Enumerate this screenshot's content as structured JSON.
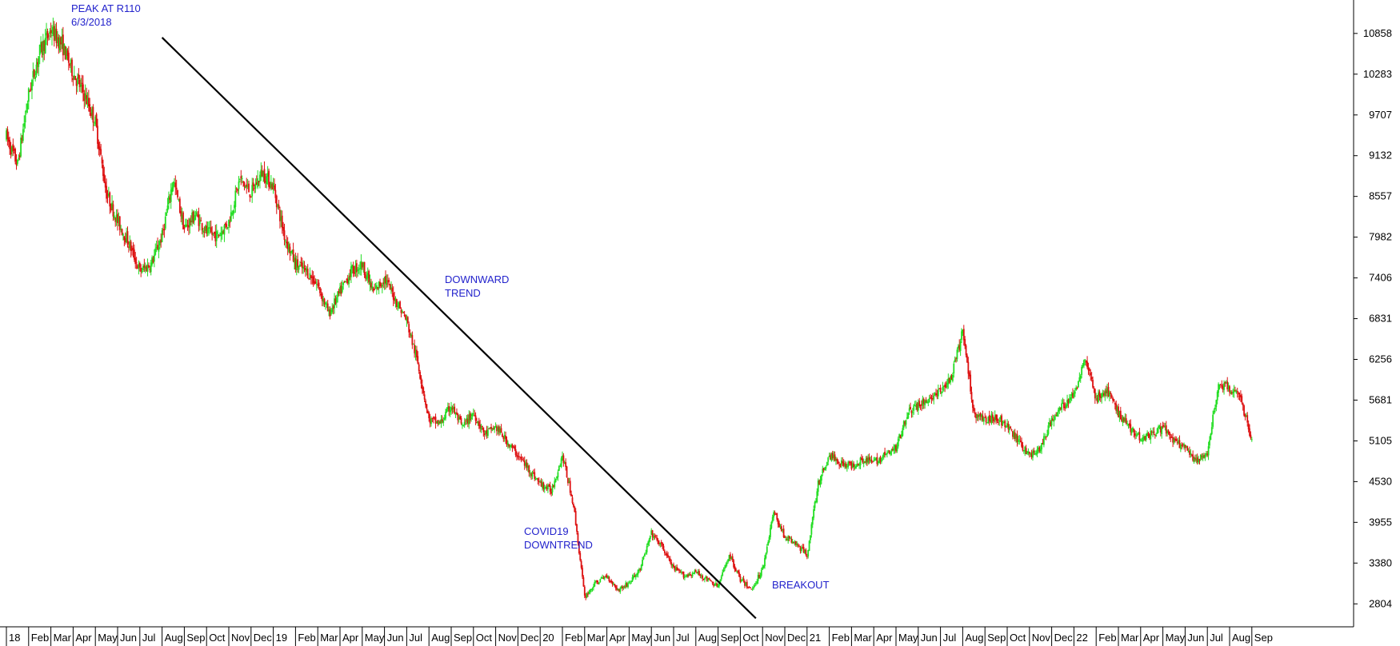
{
  "chart_data": {
    "type": "candlestick",
    "y_axis": {
      "ticks": [
        2804,
        3380,
        3955,
        4530,
        5105,
        5681,
        6256,
        6831,
        7406,
        7982,
        8557,
        9132,
        9707,
        10283,
        10858
      ],
      "ylim": [
        2480,
        11330
      ],
      "position": "right"
    },
    "x_axis": {
      "labels": [
        "18",
        "Feb",
        "Mar",
        "Apr",
        "May",
        "Jun",
        "Jul",
        "Aug",
        "Sep",
        "Oct",
        "Nov",
        "Dec",
        "19",
        "Feb",
        "Mar",
        "Apr",
        "May",
        "Jun",
        "Jul",
        "Aug",
        "Sep",
        "Oct",
        "Nov",
        "Dec",
        "20",
        "Feb",
        "Mar",
        "Apr",
        "May",
        "Jun",
        "Jul",
        "Aug",
        "Sep",
        "Oct",
        "Nov",
        "Dec",
        "21",
        "Feb",
        "Mar",
        "Apr",
        "May",
        "Jun",
        "Jul",
        "Aug",
        "Sep",
        "Oct",
        "Nov",
        "Dec",
        "22",
        "Feb",
        "Mar",
        "Apr",
        "May",
        "Jun",
        "Jul",
        "Aug",
        "Sep"
      ],
      "range_months": [
        0,
        57
      ]
    },
    "price_path": [
      [
        0.0,
        9400
      ],
      [
        0.5,
        9000
      ],
      [
        1.0,
        10000
      ],
      [
        1.5,
        10600
      ],
      [
        2.0,
        10900
      ],
      [
        2.5,
        10700
      ],
      [
        3.0,
        10300
      ],
      [
        3.5,
        10000
      ],
      [
        4.0,
        9600
      ],
      [
        4.5,
        8600
      ],
      [
        5.0,
        8200
      ],
      [
        5.5,
        7900
      ],
      [
        6.0,
        7500
      ],
      [
        6.5,
        7600
      ],
      [
        7.0,
        8000
      ],
      [
        7.5,
        8800
      ],
      [
        8.0,
        8100
      ],
      [
        8.5,
        8300
      ],
      [
        9.0,
        8050
      ],
      [
        9.5,
        8000
      ],
      [
        10.0,
        8200
      ],
      [
        10.5,
        8800
      ],
      [
        11.0,
        8600
      ],
      [
        11.5,
        8900
      ],
      [
        12.0,
        8700
      ],
      [
        12.5,
        8000
      ],
      [
        13.0,
        7600
      ],
      [
        13.5,
        7500
      ],
      [
        14.0,
        7300
      ],
      [
        14.5,
        6900
      ],
      [
        15.0,
        7200
      ],
      [
        15.5,
        7500
      ],
      [
        16.0,
        7600
      ],
      [
        16.5,
        7200
      ],
      [
        17.0,
        7400
      ],
      [
        17.5,
        7100
      ],
      [
        18.0,
        6800
      ],
      [
        18.5,
        6200
      ],
      [
        19.0,
        5400
      ],
      [
        19.5,
        5350
      ],
      [
        20.0,
        5600
      ],
      [
        20.5,
        5300
      ],
      [
        21.0,
        5500
      ],
      [
        21.5,
        5200
      ],
      [
        22.0,
        5300
      ],
      [
        22.5,
        5100
      ],
      [
        23.0,
        4900
      ],
      [
        23.5,
        4700
      ],
      [
        24.0,
        4500
      ],
      [
        24.5,
        4400
      ],
      [
        25.0,
        4900
      ],
      [
        25.5,
        4200
      ],
      [
        26.0,
        2900
      ],
      [
        26.5,
        3100
      ],
      [
        27.0,
        3200
      ],
      [
        27.5,
        3000
      ],
      [
        28.0,
        3100
      ],
      [
        28.5,
        3300
      ],
      [
        29.0,
        3800
      ],
      [
        29.5,
        3600
      ],
      [
        30.0,
        3300
      ],
      [
        30.5,
        3200
      ],
      [
        31.0,
        3250
      ],
      [
        31.5,
        3150
      ],
      [
        32.0,
        3050
      ],
      [
        32.5,
        3500
      ],
      [
        33.0,
        3150
      ],
      [
        33.5,
        3000
      ],
      [
        34.0,
        3300
      ],
      [
        34.5,
        4100
      ],
      [
        35.0,
        3750
      ],
      [
        35.5,
        3650
      ],
      [
        36.0,
        3500
      ],
      [
        36.5,
        4500
      ],
      [
        37.0,
        4900
      ],
      [
        37.5,
        4800
      ],
      [
        38.0,
        4750
      ],
      [
        38.5,
        4850
      ],
      [
        39.0,
        4800
      ],
      [
        39.5,
        4900
      ],
      [
        40.0,
        5000
      ],
      [
        40.5,
        5500
      ],
      [
        41.0,
        5600
      ],
      [
        41.5,
        5700
      ],
      [
        42.0,
        5800
      ],
      [
        42.5,
        6000
      ],
      [
        43.0,
        6650
      ],
      [
        43.5,
        5500
      ],
      [
        44.0,
        5400
      ],
      [
        44.5,
        5450
      ],
      [
        45.0,
        5300
      ],
      [
        45.5,
        5100
      ],
      [
        46.0,
        4900
      ],
      [
        46.5,
        5000
      ],
      [
        47.0,
        5400
      ],
      [
        47.5,
        5600
      ],
      [
        48.0,
        5750
      ],
      [
        48.5,
        6300
      ],
      [
        49.0,
        5700
      ],
      [
        49.5,
        5800
      ],
      [
        50.0,
        5500
      ],
      [
        50.5,
        5300
      ],
      [
        51.0,
        5150
      ],
      [
        51.5,
        5200
      ],
      [
        52.0,
        5300
      ],
      [
        52.5,
        5100
      ],
      [
        53.0,
        5000
      ],
      [
        53.5,
        4800
      ],
      [
        54.0,
        4950
      ],
      [
        54.5,
        5900
      ],
      [
        55.0,
        5850
      ],
      [
        55.5,
        5700
      ],
      [
        56.0,
        5100
      ]
    ],
    "trendline": [
      [
        7.0,
        10800
      ],
      [
        33.7,
        2600
      ]
    ],
    "annotations": [
      {
        "lines": [
          "PEAK AT R110",
          "6/3/2018"
        ]
      },
      {
        "lines": [
          "DOWNWARD",
          "TREND"
        ]
      },
      {
        "lines": [
          "COVID19",
          "DOWNTREND"
        ]
      },
      {
        "lines": [
          "BREAKOUT"
        ]
      }
    ],
    "colors": {
      "up": "#22dd22",
      "down": "#dd1111",
      "trendline": "#000000",
      "annotation": "#2222cc",
      "axis": "#000000"
    }
  }
}
